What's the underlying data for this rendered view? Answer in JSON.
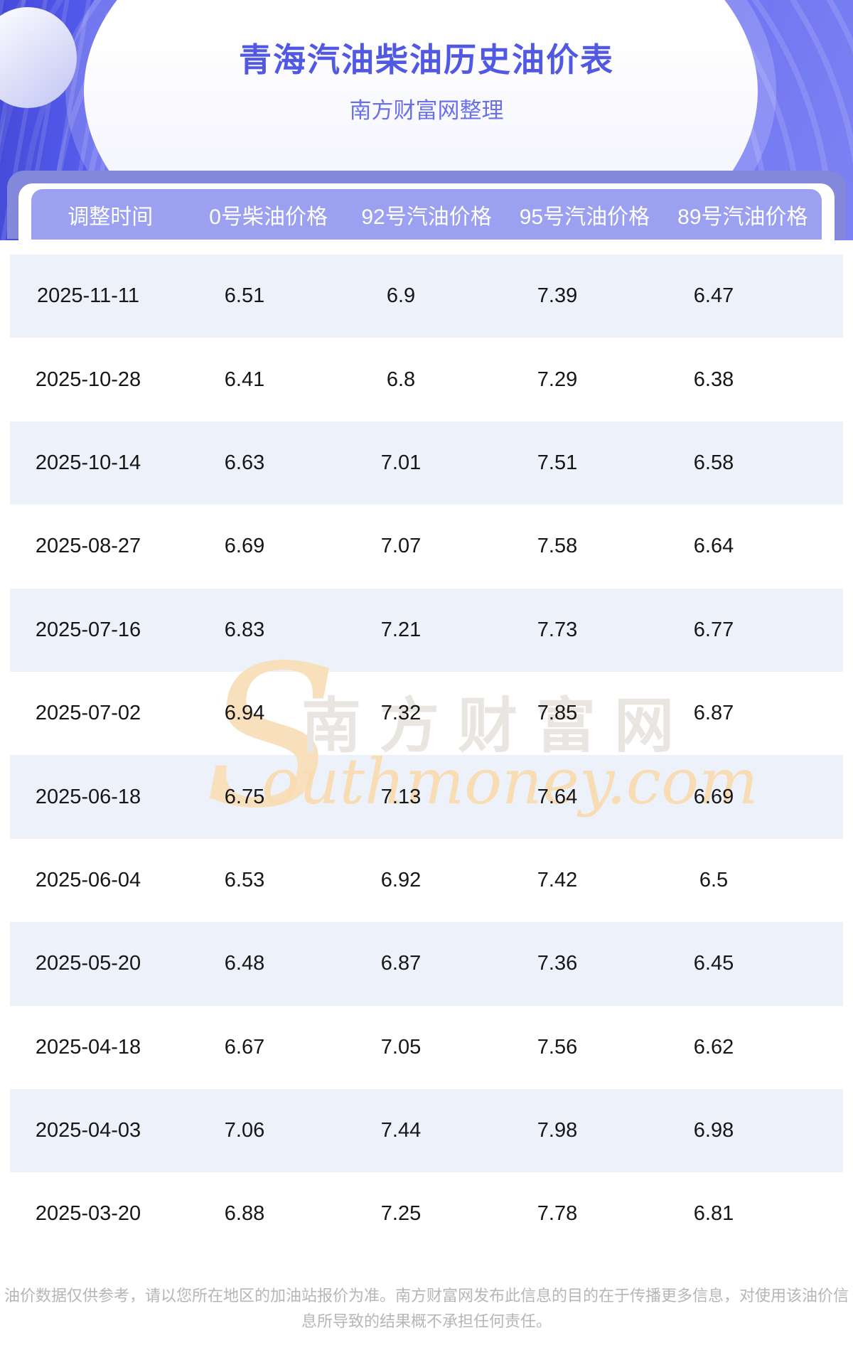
{
  "header": {
    "title": "青海汽油柴油历史油价表",
    "subtitle": "南方财富网整理"
  },
  "table": {
    "columns": [
      "调整时间",
      "0号柴油价格",
      "92号汽油价格",
      "95号汽油价格",
      "89号汽油价格"
    ],
    "rows": [
      [
        "2025-11-11",
        "6.51",
        "6.9",
        "7.39",
        "6.47"
      ],
      [
        "2025-10-28",
        "6.41",
        "6.8",
        "7.29",
        "6.38"
      ],
      [
        "2025-10-14",
        "6.63",
        "7.01",
        "7.51",
        "6.58"
      ],
      [
        "2025-08-27",
        "6.69",
        "7.07",
        "7.58",
        "6.64"
      ],
      [
        "2025-07-16",
        "6.83",
        "7.21",
        "7.73",
        "6.77"
      ],
      [
        "2025-07-02",
        "6.94",
        "7.32",
        "7.85",
        "6.87"
      ],
      [
        "2025-06-18",
        "6.75",
        "7.13",
        "7.64",
        "6.69"
      ],
      [
        "2025-06-04",
        "6.53",
        "6.92",
        "7.42",
        "6.5"
      ],
      [
        "2025-05-20",
        "6.48",
        "6.87",
        "7.36",
        "6.45"
      ],
      [
        "2025-04-18",
        "6.67",
        "7.05",
        "7.56",
        "6.62"
      ],
      [
        "2025-04-03",
        "7.06",
        "7.44",
        "7.98",
        "6.98"
      ],
      [
        "2025-03-20",
        "6.88",
        "7.25",
        "7.78",
        "6.81"
      ]
    ]
  },
  "watermark": {
    "cn": "南方财富网",
    "en_initial": "S",
    "en_rest": "outhmoney.com"
  },
  "footer": {
    "disclaimer": "油价数据仅供参考，请以您所在地区的加油站报价为准。南方财富网发布此信息的目的在于传播更多信息，对使用该油价信息所导致的结果概不承担任何责任。"
  },
  "colors": {
    "hero_purple": "#5d63ee",
    "band_purple": "#8388da",
    "table_header_purple": "#9ba0f0",
    "row_shade_blue": "#edf1fa",
    "title_indigo": "#5159e3",
    "watermark_orange": "#f7dcb4",
    "watermark_gray": "#e9e5e1",
    "footer_gray": "#b6b6b6"
  }
}
